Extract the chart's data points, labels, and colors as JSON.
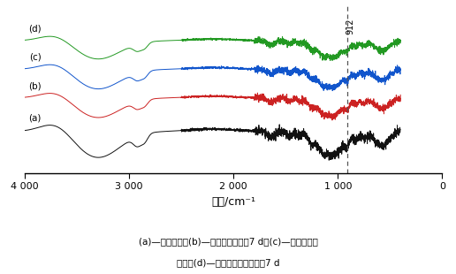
{
  "xlabel": "波数/cm⁻¹",
  "xlim": [
    4000,
    0
  ],
  "xticks": [
    4000,
    3000,
    2000,
    1000,
    0
  ],
  "xticklabels": [
    "4 000",
    "3 000",
    "2 000",
    "1 000",
    "0"
  ],
  "dashed_line_x": 912,
  "dashed_line_label": "912",
  "curve_colors": [
    "#111111",
    "#cc2222",
    "#1155cc",
    "#229922"
  ],
  "curve_labels": [
    "(a)",
    "(b)",
    "(c)",
    "(d)"
  ],
  "curve_offsets": [
    0.0,
    0.28,
    0.52,
    0.76
  ],
  "caption_line1": "(a)—原固化剂；(b)—原固化剂热贮存7 d；(c)—新合成的固",
  "caption_line2": "化剂；(d)—新合成固化剂热贮存7 d",
  "background_color": "#ffffff"
}
